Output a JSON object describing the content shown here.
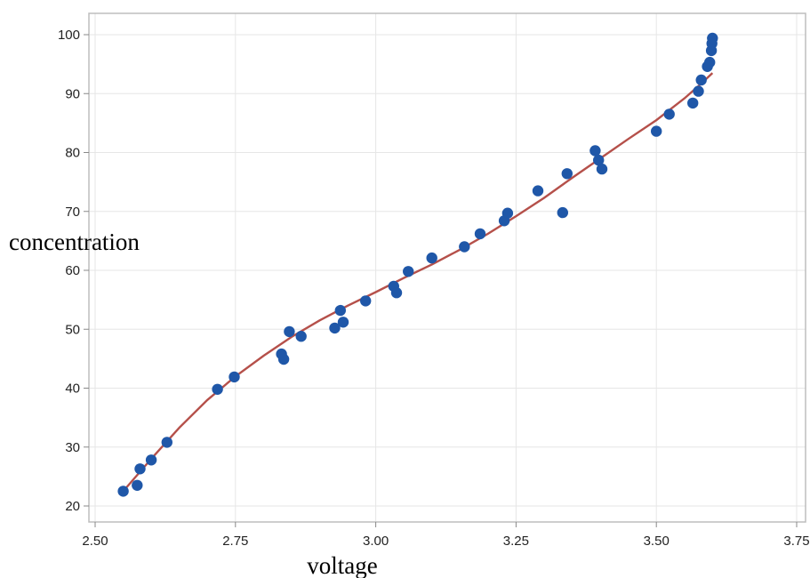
{
  "chart_data": {
    "type": "scatter",
    "title": "",
    "xlabel": "voltage",
    "ylabel": "concentration",
    "xlim": [
      2.5,
      3.75
    ],
    "ylim": [
      18,
      102
    ],
    "x_ticks": [
      2.5,
      2.75,
      3.0,
      3.25,
      3.5,
      3.75
    ],
    "x_tick_labels": [
      "2.50",
      "2.75",
      "3.00",
      "3.25",
      "3.50",
      "3.75"
    ],
    "y_ticks": [
      20,
      30,
      40,
      50,
      60,
      70,
      80,
      90,
      100
    ],
    "y_tick_labels": [
      "20",
      "30",
      "40",
      "50",
      "60",
      "70",
      "80",
      "90",
      "100"
    ],
    "grid": true,
    "colors": {
      "points": "#1f57a8",
      "fit_line": "#b5504a",
      "grid": "#e6e6e6",
      "frame": "#bdbdbd"
    },
    "points": [
      {
        "x": 2.55,
        "y": 22.5
      },
      {
        "x": 2.575,
        "y": 23.5
      },
      {
        "x": 2.58,
        "y": 26.3
      },
      {
        "x": 2.6,
        "y": 27.8
      },
      {
        "x": 2.628,
        "y": 30.8
      },
      {
        "x": 2.718,
        "y": 39.8
      },
      {
        "x": 2.748,
        "y": 41.9
      },
      {
        "x": 2.832,
        "y": 45.8
      },
      {
        "x": 2.836,
        "y": 44.9
      },
      {
        "x": 2.846,
        "y": 49.6
      },
      {
        "x": 2.867,
        "y": 48.8
      },
      {
        "x": 2.927,
        "y": 50.2
      },
      {
        "x": 2.937,
        "y": 53.2
      },
      {
        "x": 2.942,
        "y": 51.2
      },
      {
        "x": 2.982,
        "y": 54.8
      },
      {
        "x": 3.032,
        "y": 57.3
      },
      {
        "x": 3.037,
        "y": 56.2
      },
      {
        "x": 3.058,
        "y": 59.8
      },
      {
        "x": 3.1,
        "y": 62.1
      },
      {
        "x": 3.158,
        "y": 64.0
      },
      {
        "x": 3.186,
        "y": 66.2
      },
      {
        "x": 3.229,
        "y": 68.4
      },
      {
        "x": 3.235,
        "y": 69.7
      },
      {
        "x": 3.289,
        "y": 73.5
      },
      {
        "x": 3.333,
        "y": 69.8
      },
      {
        "x": 3.341,
        "y": 76.4
      },
      {
        "x": 3.391,
        "y": 80.3
      },
      {
        "x": 3.397,
        "y": 78.7
      },
      {
        "x": 3.403,
        "y": 77.2
      },
      {
        "x": 3.5,
        "y": 83.6
      },
      {
        "x": 3.523,
        "y": 86.5
      },
      {
        "x": 3.565,
        "y": 88.4
      },
      {
        "x": 3.575,
        "y": 90.4
      },
      {
        "x": 3.58,
        "y": 92.3
      },
      {
        "x": 3.591,
        "y": 94.6
      },
      {
        "x": 3.595,
        "y": 95.3
      },
      {
        "x": 3.598,
        "y": 97.3
      },
      {
        "x": 3.599,
        "y": 98.5
      },
      {
        "x": 3.6,
        "y": 99.4
      }
    ],
    "fit_line": [
      {
        "x": 2.55,
        "y": 22.5
      },
      {
        "x": 2.6,
        "y": 28.0
      },
      {
        "x": 2.65,
        "y": 33.3
      },
      {
        "x": 2.7,
        "y": 38.0
      },
      {
        "x": 2.75,
        "y": 42.0
      },
      {
        "x": 2.8,
        "y": 45.5
      },
      {
        "x": 2.85,
        "y": 48.7
      },
      {
        "x": 2.9,
        "y": 51.5
      },
      {
        "x": 2.95,
        "y": 54.0
      },
      {
        "x": 3.0,
        "y": 56.3
      },
      {
        "x": 3.05,
        "y": 58.7
      },
      {
        "x": 3.1,
        "y": 61.0
      },
      {
        "x": 3.15,
        "y": 63.5
      },
      {
        "x": 3.2,
        "y": 66.2
      },
      {
        "x": 3.25,
        "y": 69.2
      },
      {
        "x": 3.3,
        "y": 72.3
      },
      {
        "x": 3.35,
        "y": 75.7
      },
      {
        "x": 3.4,
        "y": 79.0
      },
      {
        "x": 3.45,
        "y": 82.3
      },
      {
        "x": 3.5,
        "y": 85.5
      },
      {
        "x": 3.55,
        "y": 89.2
      },
      {
        "x": 3.58,
        "y": 91.7
      },
      {
        "x": 3.6,
        "y": 93.5
      }
    ]
  }
}
